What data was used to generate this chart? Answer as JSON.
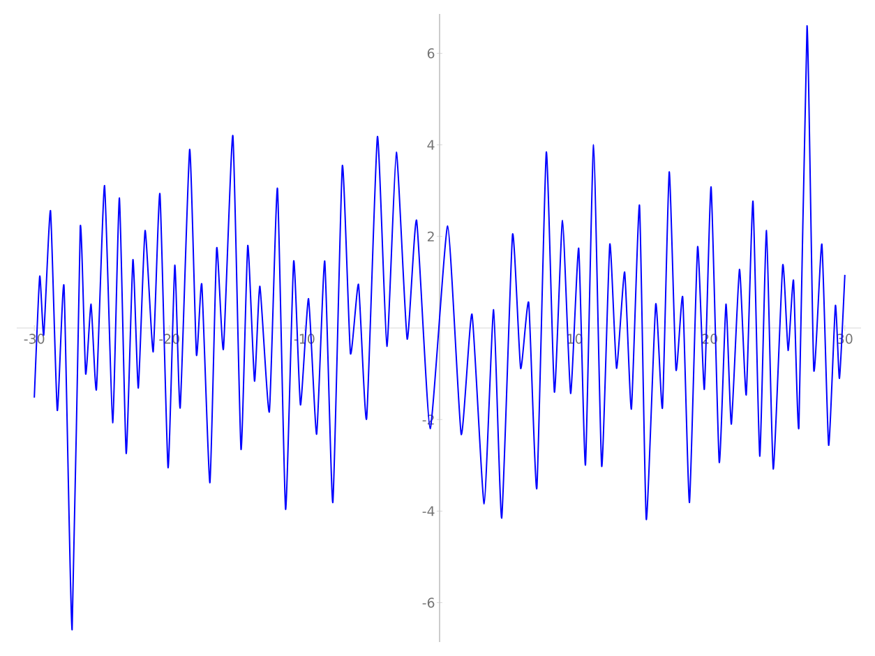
{
  "chart_data": {
    "type": "line",
    "x": [
      -30.0,
      -29.6,
      -29.3,
      -28.8,
      -28.3,
      -27.8,
      -27.2,
      -26.6,
      -26.2,
      -25.8,
      -25.4,
      -24.8,
      -24.2,
      -23.7,
      -23.2,
      -22.7,
      -22.3,
      -21.8,
      -21.2,
      -20.7,
      -20.1,
      -19.6,
      -19.2,
      -18.5,
      -18.0,
      -17.6,
      -17.0,
      -16.5,
      -16.0,
      -15.3,
      -14.7,
      -14.2,
      -13.7,
      -13.3,
      -12.6,
      -12.0,
      -11.4,
      -10.8,
      -10.3,
      -9.7,
      -9.1,
      -8.5,
      -7.9,
      -7.2,
      -6.6,
      -6.0,
      -5.4,
      -4.6,
      -3.9,
      -3.2,
      -2.4,
      -1.7,
      -0.7,
      0.6,
      1.6,
      2.4,
      3.3,
      4.0,
      4.6,
      5.4,
      6.0,
      6.6,
      7.2,
      7.9,
      8.5,
      9.1,
      9.7,
      10.3,
      10.8,
      11.4,
      12.0,
      12.6,
      13.1,
      13.7,
      14.2,
      14.8,
      15.3,
      16.0,
      16.5,
      17.0,
      17.5,
      18.0,
      18.5,
      19.1,
      19.6,
      20.1,
      20.7,
      21.2,
      21.6,
      22.2,
      22.7,
      23.2,
      23.7,
      24.2,
      24.7,
      25.4,
      25.8,
      26.2,
      26.6,
      27.2,
      27.7,
      28.3,
      28.8,
      29.3,
      29.6,
      30.0
    ],
    "values": [
      -1.52,
      1.13,
      -0.15,
      2.56,
      -1.8,
      0.91,
      -6.59,
      2.2,
      -1.0,
      0.52,
      -1.34,
      3.11,
      -2.07,
      2.84,
      -2.74,
      1.49,
      -1.31,
      2.13,
      -0.52,
      2.93,
      -3.05,
      1.37,
      -1.74,
      3.9,
      -0.58,
      0.95,
      -3.38,
      1.74,
      -0.46,
      4.2,
      -2.65,
      1.8,
      -1.16,
      0.91,
      -1.83,
      3.05,
      -3.96,
      1.46,
      -1.68,
      0.64,
      -2.32,
      1.46,
      -3.81,
      3.54,
      -0.55,
      0.95,
      -1.98,
      4.18,
      -0.4,
      3.84,
      -0.24,
      2.35,
      -2.2,
      2.23,
      -2.32,
      0.3,
      -3.84,
      0.4,
      -4.15,
      2.04,
      -0.88,
      0.55,
      -3.5,
      3.84,
      -1.4,
      2.35,
      -1.43,
      1.74,
      -2.99,
      4.0,
      -3.02,
      1.83,
      -0.88,
      1.22,
      -1.77,
      2.68,
      -4.18,
      0.52,
      -1.74,
      3.41,
      -0.91,
      0.67,
      -3.81,
      1.77,
      -1.34,
      3.08,
      -2.93,
      0.52,
      -2.1,
      1.28,
      -1.46,
      2.77,
      -2.8,
      2.13,
      -3.08,
      1.37,
      -0.49,
      1.04,
      -2.16,
      6.6,
      -0.91,
      1.83,
      -2.56,
      0.49,
      -1.1,
      1.16
    ],
    "color": "#0000ff",
    "xlim": [
      -31.3,
      31.2
    ],
    "ylim": [
      -6.86,
      6.86
    ],
    "xticks": [
      -30,
      -20,
      -10,
      10,
      20,
      30
    ],
    "yticks": [
      -6,
      -4,
      -2,
      2,
      4,
      6
    ]
  }
}
